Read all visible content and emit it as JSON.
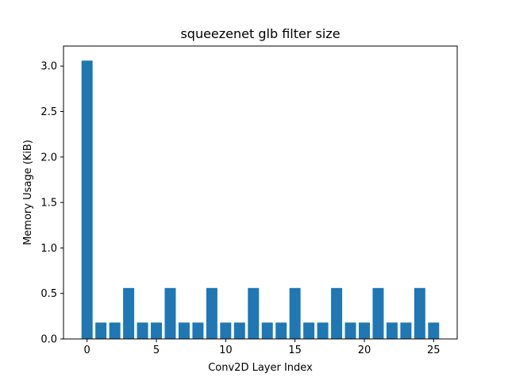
{
  "chart_data": {
    "type": "bar",
    "title": "squeezenet glb filter size",
    "xlabel": "Conv2D Layer Index",
    "ylabel": "Memory Usage (KiB)",
    "x": [
      0,
      1,
      2,
      3,
      4,
      5,
      6,
      7,
      8,
      9,
      10,
      11,
      12,
      13,
      14,
      15,
      16,
      17,
      18,
      19,
      20,
      21,
      22,
      23,
      24,
      25
    ],
    "values": [
      3.06,
      0.18,
      0.18,
      0.56,
      0.18,
      0.18,
      0.56,
      0.18,
      0.18,
      0.56,
      0.18,
      0.18,
      0.56,
      0.18,
      0.18,
      0.56,
      0.18,
      0.18,
      0.56,
      0.18,
      0.18,
      0.56,
      0.18,
      0.18,
      0.56,
      0.18
    ],
    "xlim": [
      -1.7,
      26.7
    ],
    "ylim": [
      0,
      3.22
    ],
    "xticks": [
      0,
      5,
      10,
      15,
      20,
      25
    ],
    "xtick_labels": [
      "0",
      "5",
      "10",
      "15",
      "20",
      "25"
    ],
    "yticks": [
      0,
      0.5,
      1.0,
      1.5,
      2.0,
      2.5,
      3.0
    ],
    "ytick_labels": [
      "0.0",
      "0.5",
      "1.0",
      "1.5",
      "2.0",
      "2.5",
      "3.0"
    ],
    "bar_color": "#1f77b4",
    "grid": false,
    "legend": "none"
  }
}
